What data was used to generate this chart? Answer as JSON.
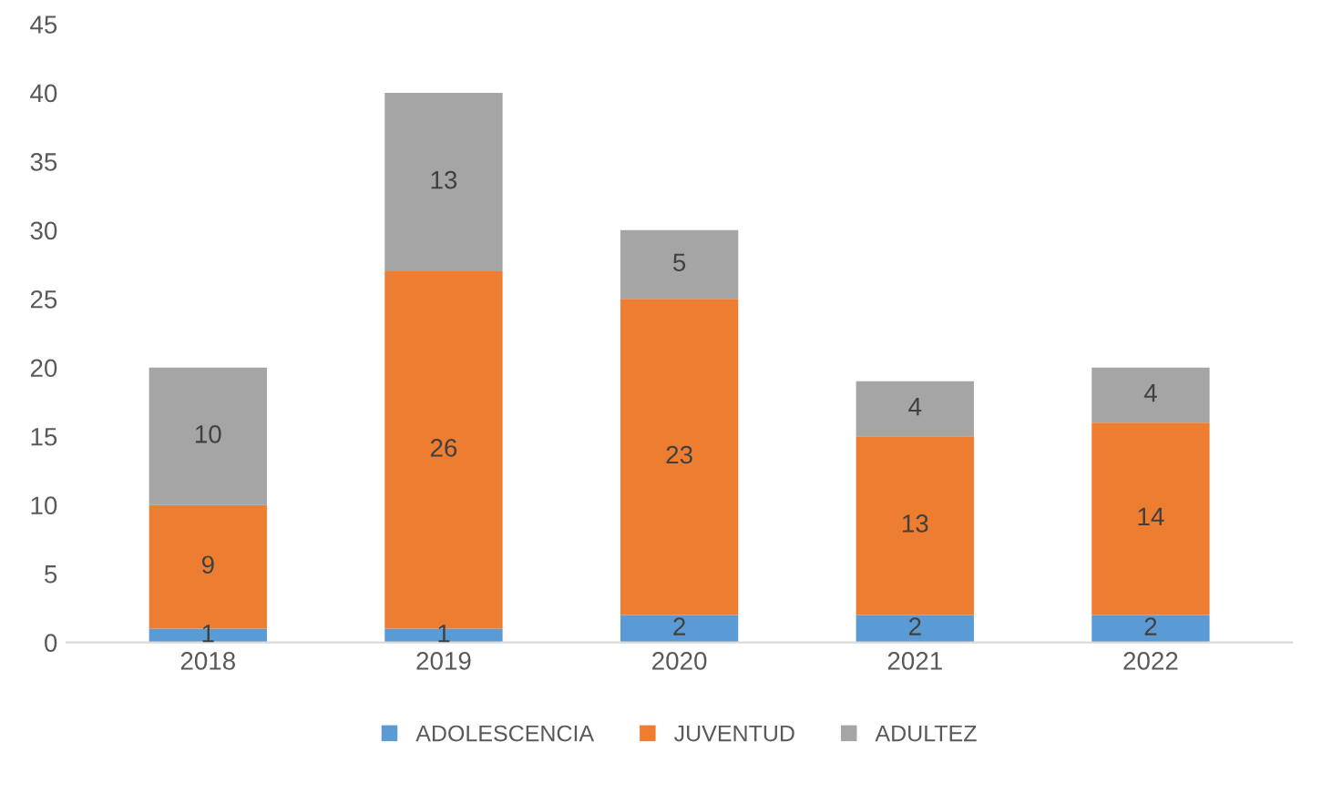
{
  "chart_data": {
    "type": "bar",
    "stacked": true,
    "categories": [
      "2018",
      "2019",
      "2020",
      "2021",
      "2022"
    ],
    "series": [
      {
        "name": "ADOLESCENCIA",
        "color": "#5b9bd5",
        "values": [
          1,
          1,
          2,
          2,
          2
        ]
      },
      {
        "name": "JUVENTUD",
        "color": "#ed7d31",
        "values": [
          9,
          26,
          23,
          13,
          14
        ]
      },
      {
        "name": "ADULTEZ",
        "color": "#a5a5a5",
        "values": [
          10,
          13,
          5,
          4,
          4
        ]
      }
    ],
    "ylim": [
      0,
      45
    ],
    "yticks": [
      0,
      5,
      10,
      15,
      20,
      25,
      30,
      35,
      40,
      45
    ],
    "grid": false,
    "legend": "bottom",
    "data_labels": true
  }
}
